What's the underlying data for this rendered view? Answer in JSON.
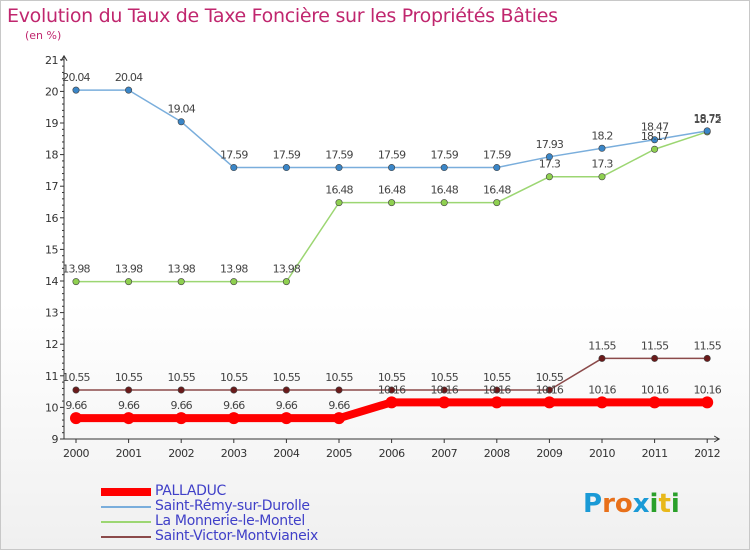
{
  "title": "Evolution du Taux de Taxe Foncière sur les Propriétés Bâties",
  "unit_label": "(en %)",
  "logo": {
    "text": "Proxiti",
    "letter_colors": [
      "#1a9ad6",
      "#e8701a",
      "#e8701a",
      "#1a9ad6",
      "#2aa02a",
      "#e8b81a",
      "#2aa02a"
    ]
  },
  "chart_data": {
    "type": "line",
    "title": "Evolution du Taux de Taxe Foncière sur les Propriétés Bâties",
    "ylabel": "(en %)",
    "xlabel": "",
    "ylim": [
      9,
      21
    ],
    "yticks": [
      "9",
      "10",
      "11",
      "12",
      "13",
      "14",
      "15",
      "16",
      "17",
      "18",
      "19",
      "20",
      "21"
    ],
    "grid": false,
    "legend_position": "bottom-left",
    "x": [
      "2000",
      "2001",
      "2002",
      "2003",
      "2004",
      "2005",
      "2006",
      "2007",
      "2008",
      "2009",
      "2010",
      "2011",
      "2012"
    ],
    "series": [
      {
        "name": "PALLADUC",
        "color": "#ff0000",
        "values": [
          9.66,
          9.66,
          9.66,
          9.66,
          9.66,
          9.66,
          10.16,
          10.16,
          10.16,
          10.16,
          10.16,
          10.16,
          10.16
        ],
        "labels": [
          "9.66",
          "9.66",
          "9.66",
          "9.66",
          "9.66",
          "9.66",
          "10.16",
          "10.16",
          "10.16",
          "10.16",
          "10.16",
          "10.16",
          "10.16"
        ]
      },
      {
        "name": "Saint-Rémy-sur-Durolle",
        "color": "#7aaedc",
        "values": [
          20.04,
          20.04,
          19.04,
          17.59,
          17.59,
          17.59,
          17.59,
          17.59,
          17.59,
          17.93,
          18.2,
          18.47,
          18.75
        ],
        "labels": [
          "20.04",
          "20.04",
          "19.04",
          "17.59",
          "17.59",
          "17.59",
          "17.59",
          "17.59",
          "17.59",
          "17.93",
          "18.2",
          "18.47",
          "18.75"
        ]
      },
      {
        "name": "La Monnerie-le-Montel",
        "color": "#9cd672",
        "values": [
          13.98,
          13.98,
          13.98,
          13.98,
          13.98,
          16.48,
          16.48,
          16.48,
          16.48,
          17.3,
          17.3,
          18.17,
          18.72
        ],
        "labels": [
          "13.98",
          "13.98",
          "13.98",
          "13.98",
          "13.98",
          "16.48",
          "16.48",
          "16.48",
          "16.48",
          "17.3",
          "17.3",
          "18.17",
          "18.72"
        ]
      },
      {
        "name": "Saint-Victor-Montvianeix",
        "color": "#8b4a4a",
        "values": [
          10.55,
          10.55,
          10.55,
          10.55,
          10.55,
          10.55,
          10.55,
          10.55,
          10.55,
          10.55,
          11.55,
          11.55,
          11.55
        ],
        "labels": [
          "10.55",
          "10.55",
          "10.55",
          "10.55",
          "10.55",
          "10.55",
          "10.55",
          "10.55",
          "10.55",
          "10.55",
          "11.55",
          "11.55",
          "11.55"
        ]
      }
    ]
  }
}
